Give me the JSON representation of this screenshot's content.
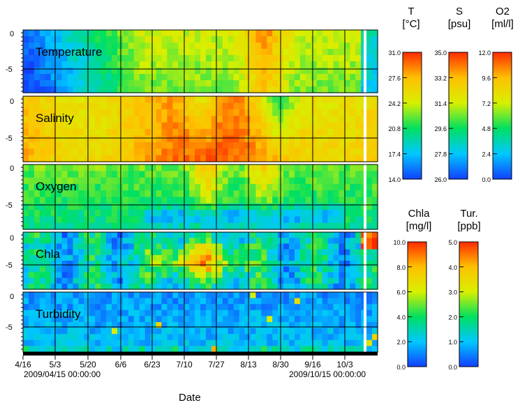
{
  "chart_data": {
    "type": "heatmap",
    "title": "",
    "xlabel": "Date",
    "x_ticks": [
      "4/16",
      "5/3",
      "5/20",
      "6/6",
      "6/23",
      "7/10",
      "7/27",
      "8/13",
      "8/30",
      "9/16",
      "10/3"
    ],
    "x_range": {
      "start": "2009/04/15 00:00:00",
      "end": "2009/10/15 00:00:00"
    },
    "x_range_labels": [
      "2009/04/15 00:00:00",
      "2009/10/15 00:00:00"
    ],
    "panels": [
      {
        "name": "Temperature",
        "y_ticks": [
          "0",
          "-5"
        ],
        "unit_label": "T",
        "unit": "[°C]",
        "colorbar_ticks": [
          "31.0",
          "27.6",
          "24.2",
          "20.8",
          "17.4",
          "14.0"
        ],
        "range": [
          14.0,
          31.0
        ],
        "colormap": "jet"
      },
      {
        "name": "Salinity",
        "y_ticks": [
          "0",
          "-5"
        ],
        "unit_label": "S",
        "unit": "[psu]",
        "colorbar_ticks": [
          "35.0",
          "33.2",
          "31.4",
          "29.6",
          "27.8",
          "26.0"
        ],
        "range": [
          26.0,
          35.0
        ],
        "colormap": "jet"
      },
      {
        "name": "Oxygen",
        "y_ticks": [
          "0",
          "-5"
        ],
        "unit_label": "O2",
        "unit": "[ml/l]",
        "colorbar_ticks": [
          "12.0",
          "9.6",
          "7.2",
          "4.8",
          "2.4",
          "0.0"
        ],
        "range": [
          0.0,
          12.0
        ],
        "colormap": "jet"
      },
      {
        "name": "Chla",
        "y_ticks": [
          "0",
          "-5"
        ],
        "unit_label": "Chla",
        "unit": "[mg/l]",
        "colorbar_ticks": [
          "10.0",
          "8.0",
          "6.0",
          "4.0",
          "2.0",
          "0.0"
        ],
        "range": [
          0.0,
          10.0
        ],
        "colormap": "jet"
      },
      {
        "name": "Turbidity",
        "y_ticks": [
          "0",
          "-5"
        ],
        "unit_label": "Tur.",
        "unit": "[ppb]",
        "colorbar_ticks": [
          "5.0",
          "4.0",
          "3.0",
          "2.0",
          "1.0",
          "0.0"
        ],
        "range": [
          0.0,
          5.0
        ],
        "colormap": "jet"
      }
    ]
  }
}
